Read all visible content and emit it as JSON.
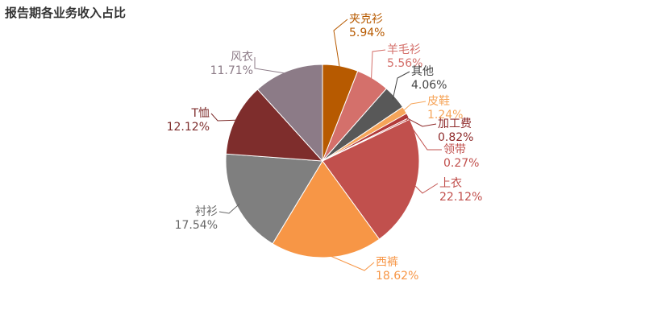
{
  "chart_data": {
    "type": "pie",
    "title": "报告期各业务收入占比",
    "slices": [
      {
        "name": "夹克衫",
        "value": 5.94,
        "label": "5.94%",
        "color": "#B75A00"
      },
      {
        "name": "羊毛衫",
        "value": 5.56,
        "label": "5.56%",
        "color": "#D4706B"
      },
      {
        "name": "其他",
        "value": 4.06,
        "label": "4.06%",
        "color": "#585858"
      },
      {
        "name": "皮鞋",
        "value": 1.24,
        "label": "1.24%",
        "color": "#F6A55A"
      },
      {
        "name": "加工费",
        "value": 0.82,
        "label": "0.82%",
        "color": "#B23A3A"
      },
      {
        "name": "领带",
        "value": 0.27,
        "label": "0.27%",
        "color": "#C5504C"
      },
      {
        "name": "上衣",
        "value": 22.12,
        "label": "22.12%",
        "color": "#C1504D"
      },
      {
        "name": "西裤",
        "value": 18.62,
        "label": "18.62%",
        "color": "#F79646"
      },
      {
        "name": "衬衫",
        "value": 17.54,
        "label": "17.54%",
        "color": "#7F7F7F"
      },
      {
        "name": "T恤",
        "value": 12.12,
        "label": "12.12%",
        "color": "#7E2D2C"
      },
      {
        "name": "风衣",
        "value": 11.71,
        "label": "11.71%",
        "color": "#8C7B87"
      }
    ]
  }
}
